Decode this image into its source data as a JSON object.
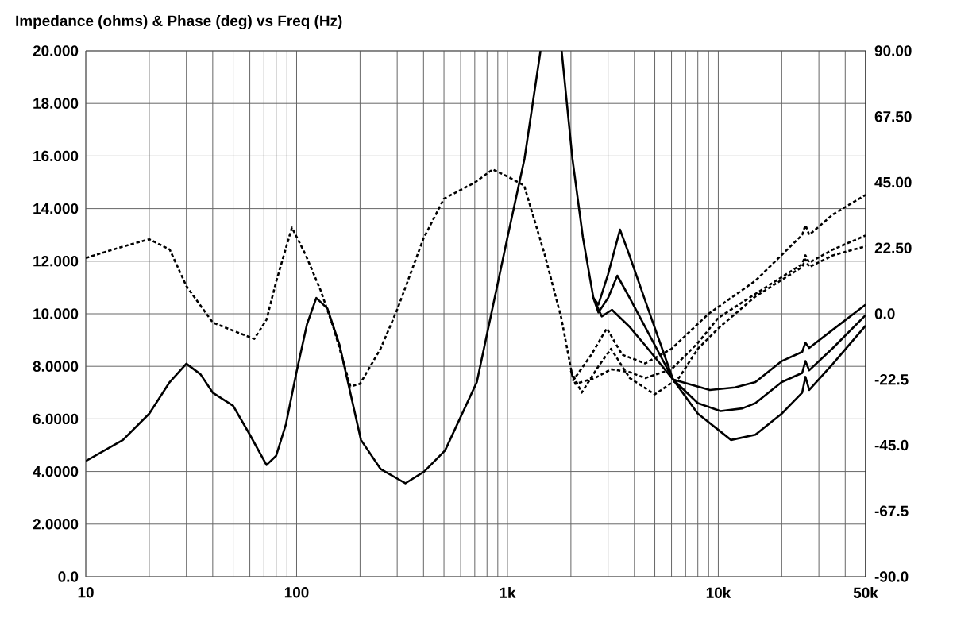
{
  "chart_data": {
    "type": "line",
    "title": "Impedance (ohms) & Phase (deg) vs Freq (Hz)",
    "log": "x",
    "grid": true,
    "xlim": [
      10,
      50000
    ],
    "ylim": [
      0,
      20
    ],
    "y2lim": [
      -90,
      90
    ],
    "xticks": [
      {
        "value": 10,
        "label": "10"
      },
      {
        "value": 20,
        "label": null
      },
      {
        "value": 30,
        "label": null
      },
      {
        "value": 40,
        "label": null
      },
      {
        "value": 50,
        "label": null
      },
      {
        "value": 60,
        "label": null
      },
      {
        "value": 70,
        "label": null
      },
      {
        "value": 80,
        "label": null
      },
      {
        "value": 90,
        "label": null
      },
      {
        "value": 100,
        "label": "100"
      },
      {
        "value": 200,
        "label": null
      },
      {
        "value": 300,
        "label": null
      },
      {
        "value": 400,
        "label": null
      },
      {
        "value": 500,
        "label": null
      },
      {
        "value": 600,
        "label": null
      },
      {
        "value": 700,
        "label": null
      },
      {
        "value": 800,
        "label": null
      },
      {
        "value": 900,
        "label": null
      },
      {
        "value": 1000,
        "label": "1k"
      },
      {
        "value": 2000,
        "label": null
      },
      {
        "value": 3000,
        "label": null
      },
      {
        "value": 4000,
        "label": null
      },
      {
        "value": 5000,
        "label": null
      },
      {
        "value": 6000,
        "label": null
      },
      {
        "value": 7000,
        "label": null
      },
      {
        "value": 8000,
        "label": null
      },
      {
        "value": 9000,
        "label": null
      },
      {
        "value": 10000,
        "label": "10k"
      },
      {
        "value": 20000,
        "label": null
      },
      {
        "value": 30000,
        "label": null
      },
      {
        "value": 40000,
        "label": null
      },
      {
        "value": 50000,
        "label": "50k"
      }
    ],
    "yticks": [
      {
        "value": 0,
        "label": "0.0"
      },
      {
        "value": 2,
        "label": "2.0000"
      },
      {
        "value": 4,
        "label": "4.0000"
      },
      {
        "value": 6,
        "label": "6.0000"
      },
      {
        "value": 8,
        "label": "8.0000"
      },
      {
        "value": 10,
        "label": "10.000"
      },
      {
        "value": 12,
        "label": "12.000"
      },
      {
        "value": 14,
        "label": "14.000"
      },
      {
        "value": 16,
        "label": "16.000"
      },
      {
        "value": 18,
        "label": "18.000"
      },
      {
        "value": 20,
        "label": "20.000"
      }
    ],
    "y2ticks": [
      {
        "value": -90,
        "label": "-90.0"
      },
      {
        "value": -67.5,
        "label": "-67.5"
      },
      {
        "value": -45,
        "label": "-45.0"
      },
      {
        "value": -22.5,
        "label": "-22.5"
      },
      {
        "value": 0,
        "label": "0.0"
      },
      {
        "value": 22.5,
        "label": "22.50"
      },
      {
        "value": 45,
        "label": "45.00"
      },
      {
        "value": 67.5,
        "label": "67.50"
      },
      {
        "value": 90,
        "label": "90.00"
      }
    ],
    "series": [
      {
        "color": "#000000",
        "line_style": "solid",
        "x": [
          10,
          15,
          20,
          25,
          30,
          35,
          40,
          50,
          60,
          72,
          80,
          89,
          100,
          112,
          124,
          140,
          160,
          202,
          250,
          328,
          403,
          506,
          716,
          1000,
          1205,
          1435,
          1600,
          1807,
          2033,
          2280,
          2557,
          2700,
          3000,
          3420,
          3800,
          4500,
          6100,
          9120,
          12000,
          15000,
          20000,
          25000,
          25900,
          27000,
          35000,
          50000
        ],
        "values": [
          4.4,
          5.2,
          6.2,
          7.4,
          8.1,
          7.7,
          7.0,
          6.5,
          5.4,
          4.25,
          4.6,
          5.8,
          7.8,
          9.6,
          10.6,
          10.2,
          8.8,
          5.2,
          4.1,
          3.55,
          4.0,
          4.8,
          7.4,
          12.9,
          15.9,
          20,
          null,
          20,
          15.9,
          12.9,
          10.6,
          10.35,
          11.5,
          13.2,
          12.2,
          10.5,
          7.5,
          7.1,
          7.2,
          7.4,
          8.2,
          8.55,
          8.9,
          8.7,
          9.4,
          10.35
        ]
      },
      {
        "color": "#000000",
        "line_style": "solid",
        "x": [
          2557,
          2700,
          3000,
          3320,
          3800,
          4500,
          6100,
          8000,
          10250,
          13000,
          15000,
          20000,
          25000,
          25900,
          27000,
          35000,
          50000
        ],
        "values": [
          10.6,
          10.05,
          10.6,
          11.45,
          10.6,
          9.5,
          7.5,
          6.6,
          6.3,
          6.4,
          6.6,
          7.4,
          7.75,
          8.2,
          7.85,
          8.7,
          9.95
        ]
      },
      {
        "color": "#000000",
        "line_style": "solid",
        "x": [
          2557,
          2800,
          3130,
          3800,
          4500,
          6100,
          8000,
          11500,
          15000,
          20000,
          25000,
          25900,
          27000,
          35000,
          50000
        ],
        "values": [
          10.6,
          9.9,
          10.15,
          9.5,
          8.8,
          7.5,
          6.2,
          5.2,
          5.4,
          6.2,
          7.0,
          7.6,
          7.1,
          8.1,
          9.55
        ]
      },
      {
        "color": "#000000",
        "line_style": "dashed",
        "axis": "y2",
        "x": [
          10,
          15,
          20,
          25,
          30,
          40,
          50,
          63,
          72,
          80,
          95,
          110,
          130,
          150,
          180,
          200,
          250,
          300,
          400,
          500,
          700,
          850,
          1000,
          1200,
          1500,
          1800,
          2050,
          2500,
          2960,
          3500,
          4500,
          6000,
          9000,
          15000,
          25000,
          25900,
          27000,
          35000,
          50000
        ],
        "values": [
          19.1,
          23,
          25.5,
          22,
          9.5,
          -3,
          -5.8,
          -8.6,
          -2,
          11,
          29.5,
          20.4,
          8,
          -5,
          -24.9,
          -24,
          -12,
          1.4,
          25.8,
          39.4,
          44.9,
          49.4,
          47,
          43.9,
          20.4,
          -1.4,
          -22.8,
          -14,
          -5,
          -14,
          -17,
          -12,
          0,
          11.3,
          27,
          30.4,
          27,
          34,
          40.7
        ]
      },
      {
        "color": "#000000",
        "line_style": "dashed",
        "axis": "y2",
        "x": [
          2000,
          2250,
          2700,
          3100,
          3800,
          5000,
          6500,
          8000,
          10000,
          15000,
          25000,
          25900,
          27000,
          35000,
          50000
        ],
        "values": [
          -19.5,
          -27,
          -18,
          -12,
          -22,
          -27.6,
          -22,
          -12,
          -5,
          5.9,
          16,
          18.6,
          16,
          20,
          23.1
        ]
      },
      {
        "color": "#000000",
        "line_style": "dashed",
        "axis": "y2",
        "x": [
          2000,
          2100,
          2600,
          3100,
          3800,
          4500,
          6000,
          8000,
          10000,
          15000,
          25000,
          25900,
          27000,
          35000,
          50000
        ],
        "values": [
          -19.5,
          -24,
          -22,
          -19,
          -20,
          -22,
          -19,
          -10,
          -1.4,
          6.8,
          17,
          20,
          17.5,
          22,
          26.8
        ]
      }
    ]
  }
}
